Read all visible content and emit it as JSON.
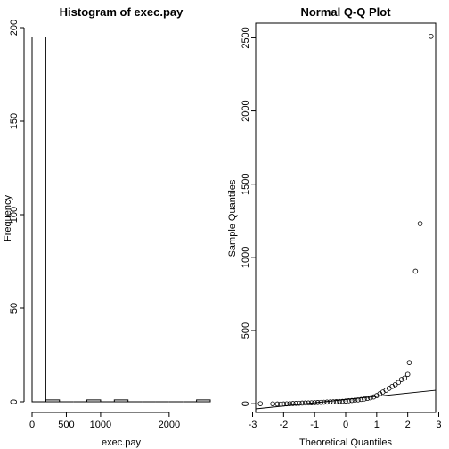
{
  "chart_data": [
    {
      "type": "bar",
      "title": "Histogram of exec.pay",
      "xlabel": "exec.pay",
      "ylabel": "Frequency",
      "bins": [
        {
          "from": 0,
          "to": 200,
          "count": 195
        },
        {
          "from": 200,
          "to": 400,
          "count": 1
        },
        {
          "from": 400,
          "to": 600,
          "count": 0
        },
        {
          "from": 600,
          "to": 800,
          "count": 0
        },
        {
          "from": 800,
          "to": 1000,
          "count": 1
        },
        {
          "from": 1000,
          "to": 1200,
          "count": 0
        },
        {
          "from": 1200,
          "to": 1400,
          "count": 1
        },
        {
          "from": 1400,
          "to": 1600,
          "count": 0
        },
        {
          "from": 1600,
          "to": 1800,
          "count": 0
        },
        {
          "from": 1800,
          "to": 2000,
          "count": 0
        },
        {
          "from": 2000,
          "to": 2200,
          "count": 0
        },
        {
          "from": 2200,
          "to": 2400,
          "count": 0
        },
        {
          "from": 2400,
          "to": 2600,
          "count": 1
        }
      ],
      "xlim": [
        0,
        2600
      ],
      "ylim": [
        0,
        200
      ],
      "xticks": [
        0,
        500,
        1000,
        2000
      ],
      "yticks": [
        0,
        50,
        100,
        150,
        200
      ],
      "grid": false
    },
    {
      "type": "scatter",
      "title": "Normal Q-Q Plot",
      "xlabel": "Theoretical Quantiles",
      "ylabel": "Sample Quantiles",
      "xlim": [
        -2.9,
        2.9
      ],
      "ylim": [
        -60,
        2600
      ],
      "xticks": [
        -3,
        -2,
        -1,
        0,
        1,
        2,
        3
      ],
      "yticks": [
        0,
        500,
        1000,
        1500,
        2000,
        2500
      ],
      "reference_line": {
        "slope": 22,
        "intercept": 28
      },
      "points": [
        [
          -2.75,
          0
        ],
        [
          -2.35,
          -1
        ],
        [
          -2.2,
          -2
        ],
        [
          -2.1,
          -3
        ],
        [
          -2.0,
          -2
        ],
        [
          -1.9,
          -1
        ],
        [
          -1.8,
          0
        ],
        [
          -1.7,
          1
        ],
        [
          -1.6,
          2
        ],
        [
          -1.5,
          3
        ],
        [
          -1.4,
          4
        ],
        [
          -1.3,
          5
        ],
        [
          -1.2,
          5
        ],
        [
          -1.1,
          6
        ],
        [
          -1.0,
          7
        ],
        [
          -0.9,
          8
        ],
        [
          -0.8,
          9
        ],
        [
          -0.7,
          10
        ],
        [
          -0.6,
          11
        ],
        [
          -0.5,
          12
        ],
        [
          -0.4,
          13
        ],
        [
          -0.3,
          14
        ],
        [
          -0.2,
          15
        ],
        [
          -0.1,
          16
        ],
        [
          0.0,
          18
        ],
        [
          0.1,
          20
        ],
        [
          0.2,
          22
        ],
        [
          0.3,
          24
        ],
        [
          0.4,
          26
        ],
        [
          0.5,
          29
        ],
        [
          0.6,
          32
        ],
        [
          0.7,
          36
        ],
        [
          0.8,
          40
        ],
        [
          0.9,
          46
        ],
        [
          1.0,
          55
        ],
        [
          1.1,
          68
        ],
        [
          1.2,
          80
        ],
        [
          1.3,
          92
        ],
        [
          1.4,
          105
        ],
        [
          1.5,
          118
        ],
        [
          1.6,
          130
        ],
        [
          1.7,
          145
        ],
        [
          1.8,
          165
        ],
        [
          1.9,
          175
        ],
        [
          2.0,
          200
        ],
        [
          2.05,
          280
        ],
        [
          2.25,
          905
        ],
        [
          2.4,
          1230
        ],
        [
          2.75,
          2510
        ]
      ]
    }
  ]
}
